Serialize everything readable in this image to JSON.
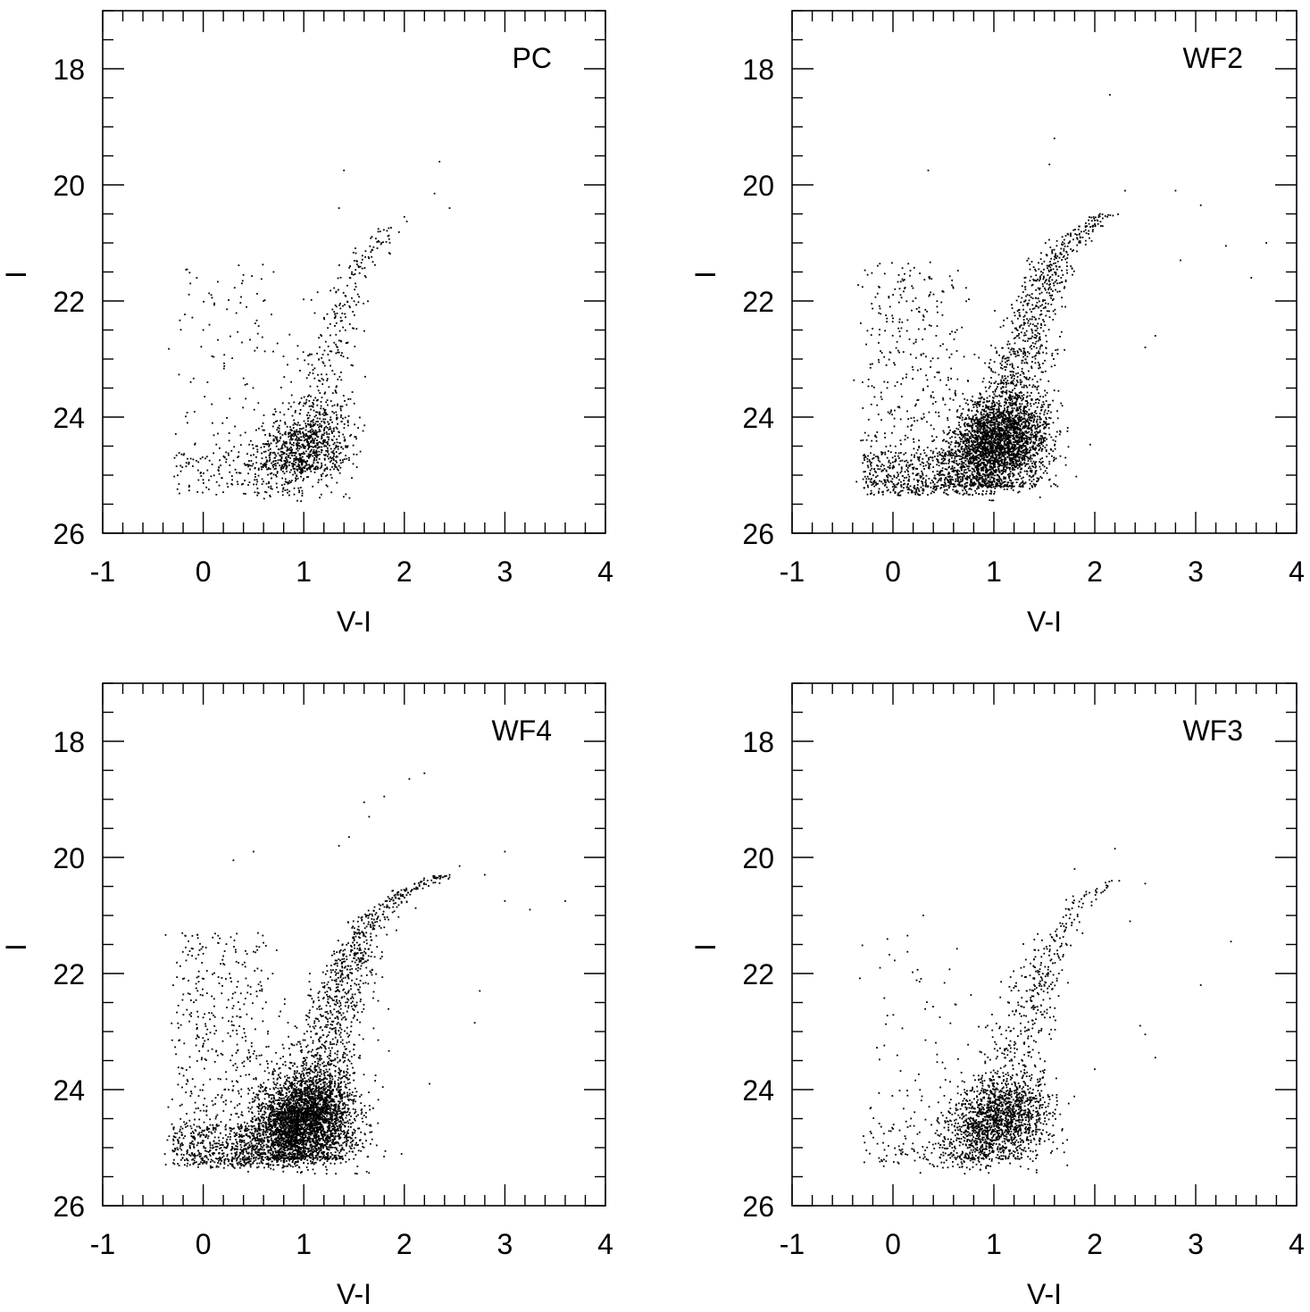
{
  "chart_data": [
    {
      "type": "scatter",
      "panel_label": "PC",
      "xlabel": "V-I",
      "ylabel": "I",
      "xlim": [
        -1,
        4
      ],
      "ylim": [
        26,
        17
      ],
      "y_inverted": true,
      "x_ticks": [
        "-1",
        "0",
        "1",
        "2",
        "3",
        "4"
      ],
      "y_ticks": [
        "18",
        "20",
        "22",
        "24",
        "26"
      ],
      "point_color": "#000000",
      "sequence": {
        "main_ridge": [
          [
            0.95,
            24.9
          ],
          [
            1.05,
            24.3
          ],
          [
            1.15,
            23.6
          ],
          [
            1.25,
            22.8
          ],
          [
            1.4,
            22.0
          ],
          [
            1.55,
            21.4
          ],
          [
            1.75,
            21.0
          ],
          [
            1.95,
            20.6
          ]
        ],
        "clump_center": [
          1.0,
          24.5
        ],
        "n_points": 1200,
        "blue_plume_points": 120,
        "scattered_bright": [
          [
            1.4,
            19.75
          ],
          [
            2.35,
            19.6
          ],
          [
            2.3,
            20.15
          ],
          [
            1.35,
            20.4
          ],
          [
            2.45,
            20.4
          ],
          [
            2.0,
            20.55
          ],
          [
            0.4,
            21.55
          ],
          [
            0.7,
            21.5
          ],
          [
            0.6,
            22.0
          ],
          [
            0.0,
            22.5
          ]
        ]
      }
    },
    {
      "type": "scatter",
      "panel_label": "WF2",
      "xlabel": "V-I",
      "ylabel": "I",
      "xlim": [
        -1,
        4
      ],
      "ylim": [
        26,
        17
      ],
      "y_inverted": true,
      "x_ticks": [
        "-1",
        "0",
        "1",
        "2",
        "3",
        "4"
      ],
      "y_ticks": [
        "18",
        "20",
        "22",
        "24",
        "26"
      ],
      "point_color": "#000000",
      "sequence": {
        "main_ridge": [
          [
            0.95,
            25.2
          ],
          [
            1.05,
            24.4
          ],
          [
            1.15,
            23.6
          ],
          [
            1.3,
            22.7
          ],
          [
            1.45,
            21.9
          ],
          [
            1.6,
            21.2
          ],
          [
            1.8,
            20.9
          ],
          [
            2.1,
            20.5
          ]
        ],
        "clump_center": [
          1.05,
          24.4
        ],
        "n_points": 3600,
        "blue_plume_points": 420,
        "scattered_bright": [
          [
            2.15,
            18.45
          ],
          [
            1.6,
            19.2
          ],
          [
            1.55,
            19.65
          ],
          [
            0.35,
            19.75
          ],
          [
            2.3,
            20.1
          ],
          [
            2.8,
            20.1
          ],
          [
            3.05,
            20.35
          ],
          [
            3.3,
            21.05
          ],
          [
            3.7,
            21.0
          ],
          [
            2.85,
            21.3
          ],
          [
            3.55,
            21.6
          ],
          [
            2.6,
            22.6
          ],
          [
            2.5,
            22.8
          ]
        ]
      }
    },
    {
      "type": "scatter",
      "panel_label": "WF4",
      "xlabel": "V-I",
      "ylabel": "I",
      "xlim": [
        -1,
        4
      ],
      "ylim": [
        26,
        17
      ],
      "y_inverted": true,
      "x_ticks": [
        "-1",
        "0",
        "1",
        "2",
        "3",
        "4"
      ],
      "y_ticks": [
        "18",
        "20",
        "22",
        "24",
        "26"
      ],
      "point_color": "#000000",
      "sequence": {
        "main_ridge": [
          [
            0.95,
            25.2
          ],
          [
            1.0,
            24.5
          ],
          [
            1.1,
            23.8
          ],
          [
            1.25,
            23.0
          ],
          [
            1.4,
            22.2
          ],
          [
            1.55,
            21.4
          ],
          [
            1.7,
            21.0
          ],
          [
            2.0,
            20.6
          ],
          [
            2.4,
            20.3
          ]
        ],
        "clump_center": [
          1.0,
          24.5
        ],
        "n_points": 4400,
        "blue_plume_points": 520,
        "scattered_bright": [
          [
            2.2,
            18.55
          ],
          [
            2.05,
            18.65
          ],
          [
            1.8,
            18.95
          ],
          [
            1.6,
            19.05
          ],
          [
            1.65,
            19.3
          ],
          [
            1.45,
            19.65
          ],
          [
            1.35,
            19.8
          ],
          [
            0.5,
            19.9
          ],
          [
            0.3,
            20.05
          ],
          [
            3.0,
            19.9
          ],
          [
            2.55,
            20.15
          ],
          [
            2.8,
            20.3
          ],
          [
            3.0,
            20.75
          ],
          [
            3.25,
            20.9
          ],
          [
            3.6,
            20.75
          ],
          [
            2.75,
            22.3
          ],
          [
            2.7,
            22.85
          ],
          [
            2.25,
            23.9
          ]
        ]
      }
    },
    {
      "type": "scatter",
      "panel_label": "WF3",
      "xlabel": "V-I",
      "ylabel": "I",
      "xlim": [
        -1,
        4
      ],
      "ylim": [
        26,
        17
      ],
      "y_inverted": true,
      "x_ticks": [
        "-1",
        "0",
        "1",
        "2",
        "3",
        "4"
      ],
      "y_ticks": [
        "18",
        "20",
        "22",
        "24",
        "26"
      ],
      "point_color": "#000000",
      "sequence": {
        "main_ridge": [
          [
            0.95,
            25.2
          ],
          [
            1.05,
            24.5
          ],
          [
            1.15,
            23.7
          ],
          [
            1.3,
            22.9
          ],
          [
            1.45,
            22.1
          ],
          [
            1.6,
            21.4
          ],
          [
            1.8,
            20.8
          ],
          [
            2.2,
            20.4
          ]
        ],
        "clump_center": [
          1.05,
          24.5
        ],
        "n_points": 2000,
        "blue_plume_points": 90,
        "scattered_bright": [
          [
            2.2,
            19.85
          ],
          [
            1.8,
            20.2
          ],
          [
            2.5,
            20.45
          ],
          [
            0.3,
            21.0
          ],
          [
            3.35,
            21.45
          ],
          [
            2.35,
            21.1
          ],
          [
            3.05,
            22.2
          ],
          [
            2.45,
            22.9
          ],
          [
            2.5,
            23.05
          ],
          [
            2.0,
            23.65
          ],
          [
            2.6,
            23.45
          ]
        ]
      }
    }
  ]
}
